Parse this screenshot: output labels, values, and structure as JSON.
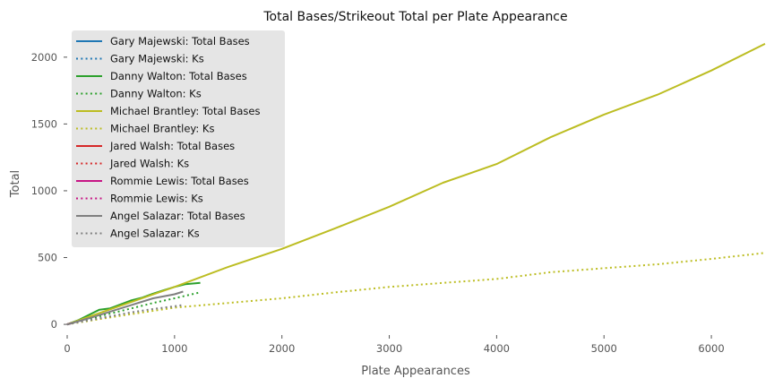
{
  "chart_data": {
    "type": "line",
    "title": "Total Bases/Strikeout Total per Plate Appearance",
    "xlabel": "Plate Appearances",
    "ylabel": "Total",
    "xlim": [
      0,
      6500
    ],
    "ylim": [
      -80,
      2200
    ],
    "xticks": [
      0,
      1000,
      2000,
      3000,
      4000,
      5000,
      6000
    ],
    "yticks": [
      0,
      500,
      1000,
      1500,
      2000
    ],
    "grid": false,
    "legend_position": "top-left",
    "series": [
      {
        "name": "Gary Majewski: Total Bases",
        "color": "#1f77b4",
        "style": "solid",
        "x": [
          0,
          20,
          40,
          60
        ],
        "y": [
          0,
          4,
          9,
          14
        ]
      },
      {
        "name": "Gary Majewski: Ks",
        "color": "#1f77b4",
        "style": "dotted",
        "x": [
          0,
          20,
          40,
          60
        ],
        "y": [
          0,
          5,
          10,
          15
        ]
      },
      {
        "name": "Danny Walton: Total Bases",
        "color": "#2ca02c",
        "style": "solid",
        "x": [
          0,
          100,
          200,
          300,
          400,
          500,
          600,
          700,
          800,
          900,
          1000,
          1100,
          1240
        ],
        "y": [
          0,
          30,
          70,
          110,
          120,
          150,
          180,
          200,
          230,
          255,
          280,
          300,
          310
        ]
      },
      {
        "name": "Danny Walton: Ks",
        "color": "#2ca02c",
        "style": "dotted",
        "x": [
          0,
          200,
          400,
          600,
          800,
          1000,
          1240
        ],
        "y": [
          0,
          40,
          80,
          120,
          160,
          195,
          240
        ]
      },
      {
        "name": "Michael Brantley: Total Bases",
        "color": "#bcbd22",
        "style": "solid",
        "x": [
          0,
          500,
          1000,
          1500,
          2000,
          2500,
          3000,
          3500,
          4000,
          4500,
          5000,
          5500,
          6000,
          6500
        ],
        "y": [
          0,
          140,
          280,
          430,
          565,
          720,
          880,
          1060,
          1200,
          1400,
          1570,
          1720,
          1900,
          2100
        ]
      },
      {
        "name": "Michael Brantley: Ks",
        "color": "#bcbd22",
        "style": "dotted",
        "x": [
          0,
          500,
          1000,
          1500,
          2000,
          2500,
          3000,
          3500,
          4000,
          4500,
          5000,
          5500,
          6000,
          6500
        ],
        "y": [
          0,
          65,
          125,
          160,
          195,
          240,
          280,
          310,
          340,
          390,
          420,
          450,
          490,
          535
        ]
      },
      {
        "name": "Jared Walsh: Total Bases",
        "color": "#d62728",
        "style": "solid",
        "x": [
          0,
          20,
          40
        ],
        "y": [
          0,
          5,
          10
        ]
      },
      {
        "name": "Jared Walsh: Ks",
        "color": "#d62728",
        "style": "dotted",
        "x": [
          0,
          20,
          40
        ],
        "y": [
          0,
          5,
          11
        ]
      },
      {
        "name": "Rommie Lewis: Total Bases",
        "color": "#c71585",
        "style": "solid",
        "x": [
          0,
          20,
          40
        ],
        "y": [
          0,
          4,
          8
        ]
      },
      {
        "name": "Rommie Lewis: Ks",
        "color": "#c71585",
        "style": "dotted",
        "x": [
          0,
          20,
          40
        ],
        "y": [
          0,
          4,
          9
        ]
      },
      {
        "name": "Angel Salazar: Total Bases",
        "color": "#7f7f7f",
        "style": "solid",
        "x": [
          0,
          200,
          400,
          600,
          800,
          1000,
          1080
        ],
        "y": [
          0,
          45,
          95,
          145,
          195,
          225,
          245
        ]
      },
      {
        "name": "Angel Salazar: Ks",
        "color": "#7f7f7f",
        "style": "dotted",
        "x": [
          0,
          200,
          400,
          600,
          800,
          1000,
          1080
        ],
        "y": [
          0,
          30,
          60,
          90,
          115,
          135,
          145
        ]
      }
    ]
  }
}
